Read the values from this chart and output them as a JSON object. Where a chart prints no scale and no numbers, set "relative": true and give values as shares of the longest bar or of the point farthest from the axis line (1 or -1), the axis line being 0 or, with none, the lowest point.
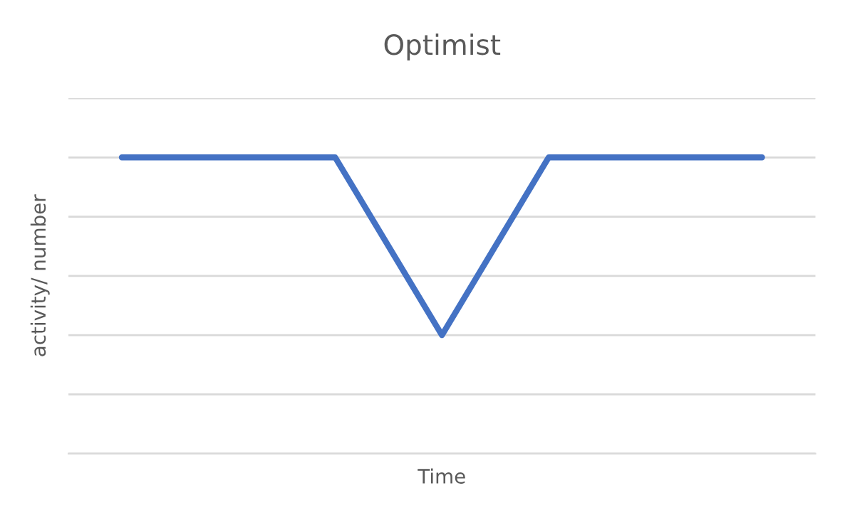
{
  "chart_data": {
    "type": "line",
    "title": "Optimist",
    "xlabel": "Time",
    "ylabel": "activity/ number",
    "categories": [
      null,
      null,
      null,
      null,
      null,
      null,
      null
    ],
    "relative": true,
    "grid": "y",
    "legend": false,
    "marker": "none",
    "line_style": "solid",
    "series": [
      {
        "color": "#4472c4",
        "values": [
          1,
          1,
          1,
          0.4,
          1,
          1,
          1
        ]
      }
    ]
  }
}
